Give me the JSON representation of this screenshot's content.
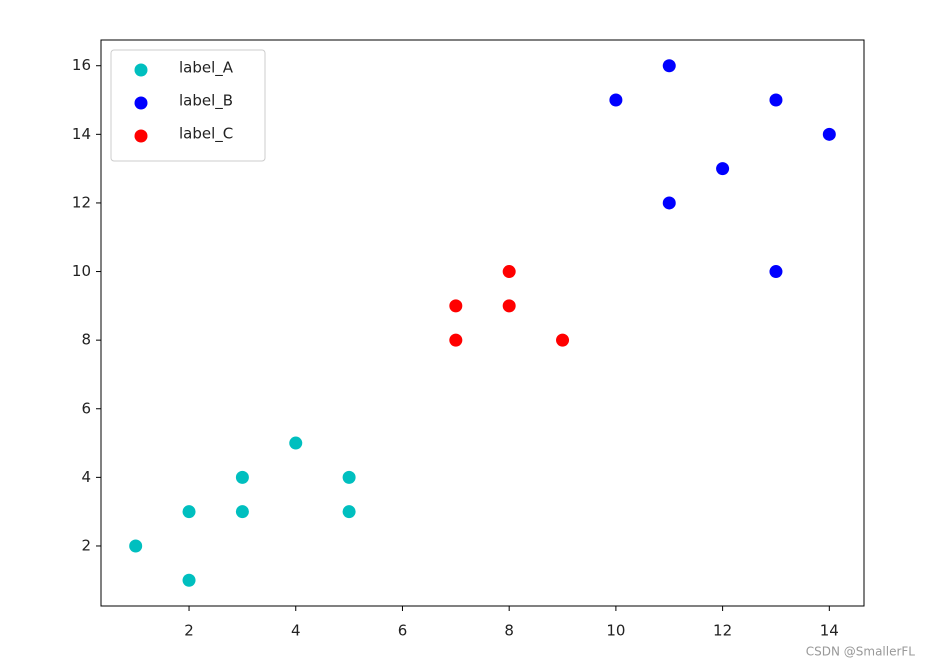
{
  "chart_data": {
    "type": "scatter",
    "series": [
      {
        "name": "label_A",
        "color": "#00bfbf",
        "x": [
          1,
          2,
          2,
          3,
          3,
          4,
          5,
          5
        ],
        "y": [
          2,
          1,
          3,
          3,
          4,
          5,
          4,
          3
        ]
      },
      {
        "name": "label_B",
        "color": "#0000ff",
        "x": [
          10,
          11,
          11,
          12,
          13,
          13,
          14
        ],
        "y": [
          15,
          16,
          12,
          13,
          15,
          10,
          14
        ]
      },
      {
        "name": "label_C",
        "color": "#ff0000",
        "x": [
          7,
          7,
          8,
          8,
          9
        ],
        "y": [
          8,
          9,
          9,
          10,
          8
        ]
      }
    ],
    "xlim": [
      0.35,
      14.65
    ],
    "ylim": [
      0.25,
      16.75
    ],
    "xticks": [
      2,
      4,
      6,
      8,
      10,
      12,
      14
    ],
    "yticks": [
      2,
      4,
      6,
      8,
      10,
      12,
      14,
      16
    ],
    "grid": false,
    "legend": "upper left"
  },
  "watermark": "CSDN @SmallerFL"
}
